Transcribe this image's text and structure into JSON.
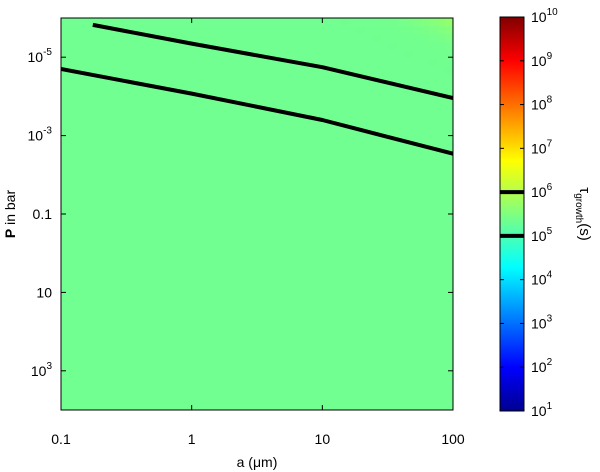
{
  "chart_data": {
    "type": "heatmap",
    "title": "",
    "x_axis": {
      "label_main": "a (",
      "label_unit": "μm",
      "label_close": ")",
      "scale": "log",
      "range": [
        0.1,
        100
      ],
      "ticks": [
        {
          "value": 0.1,
          "label": "0.1"
        },
        {
          "value": 1,
          "label": "1"
        },
        {
          "value": 10,
          "label": "10"
        },
        {
          "value": 100,
          "label": "100"
        }
      ]
    },
    "y_axis": {
      "label_bold": "P",
      "label_rest": " in bar",
      "scale": "log",
      "reversed": true,
      "range": [
        1e-06,
        10000
      ],
      "ticks": [
        {
          "value": 1e-05,
          "base": "10",
          "exp": "-5"
        },
        {
          "value": 0.001,
          "base": "10",
          "exp": "-3"
        },
        {
          "value": 0.1,
          "label": "0.1"
        },
        {
          "value": 10,
          "label": "10"
        },
        {
          "value": 1000,
          "base": "10",
          "exp": "3"
        }
      ]
    },
    "colorbar": {
      "label": "τ",
      "label_sub": "growth",
      "label_unit": "(s)",
      "scale": "log",
      "range": [
        10,
        10000000000.0
      ],
      "colormap": "jet",
      "ticks": [
        {
          "value": 10,
          "base": "10",
          "exp": "1"
        },
        {
          "value": 100,
          "base": "10",
          "exp": "2"
        },
        {
          "value": 1000,
          "base": "10",
          "exp": "3"
        },
        {
          "value": 10000,
          "base": "10",
          "exp": "4"
        },
        {
          "value": 100000,
          "base": "10",
          "exp": "5"
        },
        {
          "value": 1000000,
          "base": "10",
          "exp": "6"
        },
        {
          "value": 10000000,
          "base": "10",
          "exp": "7"
        },
        {
          "value": 100000000,
          "base": "10",
          "exp": "8"
        },
        {
          "value": 1000000000,
          "base": "10",
          "exp": "9"
        },
        {
          "value": 10000000000,
          "base": "10",
          "exp": "10"
        }
      ],
      "marked_levels": [
        100000,
        1000000
      ]
    },
    "contour_lines": [
      {
        "level": 1000000,
        "color": "#000000",
        "points": [
          [
            0.175,
            1.5e-06
          ],
          [
            1,
            4.5e-06
          ],
          [
            10,
            1.8e-05
          ],
          [
            100,
            0.00011
          ]
        ]
      },
      {
        "level": 100000,
        "color": "#000000",
        "points": [
          [
            0.1,
            2e-05
          ],
          [
            1,
            8.5e-05
          ],
          [
            10,
            0.0004
          ],
          [
            100,
            0.0029
          ]
        ]
      }
    ]
  }
}
